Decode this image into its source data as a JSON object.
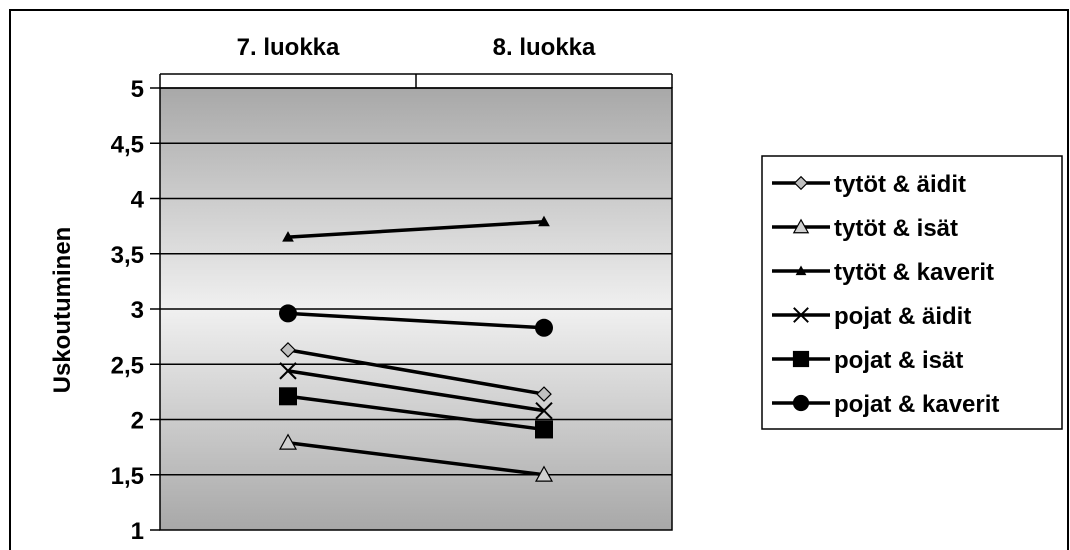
{
  "chart_data": {
    "type": "line",
    "title": "",
    "xlabel": "",
    "ylabel": "Uskoutuminen",
    "categories": [
      "7. luokka",
      "8. luokka"
    ],
    "ylim": [
      1,
      5
    ],
    "y_ticks": [
      "1",
      "1,5",
      "2",
      "2,5",
      "3",
      "3,5",
      "4",
      "4,5",
      "5"
    ],
    "y_tick_values": [
      1,
      1.5,
      2,
      2.5,
      3,
      3.5,
      4,
      4.5,
      5
    ],
    "grid": true,
    "legend_position": "right",
    "series": [
      {
        "name": "tytöt & äidit",
        "values": [
          2.63,
          2.23
        ],
        "marker": "diamond",
        "marker_fill": "#c0c0c0"
      },
      {
        "name": "tytöt & isät",
        "values": [
          1.79,
          1.5
        ],
        "marker": "triangle-open",
        "marker_fill": "#d0d0d0"
      },
      {
        "name": "tytöt & kaverit",
        "values": [
          3.65,
          3.79
        ],
        "marker": "triangle-small",
        "marker_fill": "#000000"
      },
      {
        "name": "pojat & äidit",
        "values": [
          2.44,
          2.08
        ],
        "marker": "x",
        "marker_fill": "#000000"
      },
      {
        "name": "pojat & isät",
        "values": [
          2.21,
          1.91
        ],
        "marker": "square",
        "marker_fill": "#000000"
      },
      {
        "name": "pojat & kaverit",
        "values": [
          2.96,
          2.83
        ],
        "marker": "circle",
        "marker_fill": "#000000"
      }
    ],
    "colors": {
      "line": "#000000",
      "plot_bg_outer": "#a8a8a8",
      "plot_bg_inner": "#f0f0f0",
      "grid": "#000000"
    }
  }
}
